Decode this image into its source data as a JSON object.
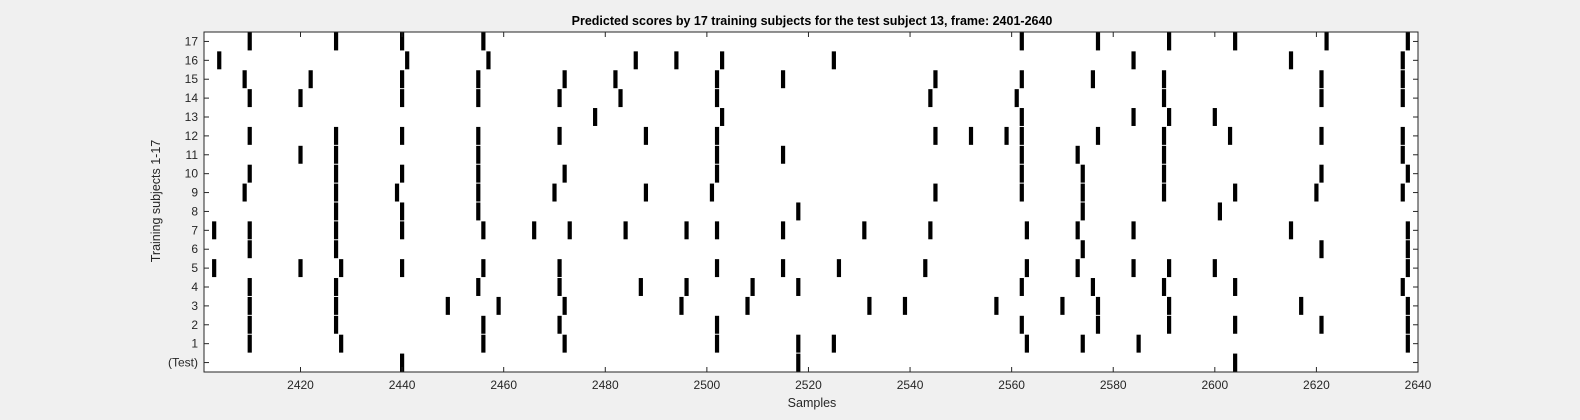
{
  "chart_data": {
    "type": "scatter",
    "marker": "vertical-bar",
    "title": "Predicted scores by 17 training subjects for the test subject 13, frame: 2401-2640",
    "xlabel": "Samples",
    "ylabel": "Training subjects 1-17",
    "xlim": [
      2401,
      2640
    ],
    "xticks": [
      2420,
      2440,
      2460,
      2480,
      2500,
      2520,
      2540,
      2560,
      2580,
      2600,
      2620,
      2640
    ],
    "yticklabels": [
      "(Test)",
      "1",
      "2",
      "3",
      "4",
      "5",
      "6",
      "7",
      "8",
      "9",
      "10",
      "11",
      "12",
      "13",
      "14",
      "15",
      "16",
      "17"
    ],
    "grid": false,
    "colors": {
      "mark": "#000000",
      "axes_bg": "#ffffff",
      "figure_bg": "#f0f0f0",
      "text": "#262626"
    },
    "rows": [
      {
        "label": "(Test)",
        "x": [
          2440,
          2518,
          2604
        ]
      },
      {
        "label": "1",
        "x": [
          2410,
          2428,
          2456,
          2472,
          2502,
          2518,
          2525,
          2563,
          2574,
          2585,
          2638
        ]
      },
      {
        "label": "2",
        "x": [
          2410,
          2427,
          2456,
          2471,
          2502,
          2562,
          2577,
          2591,
          2604,
          2621,
          2638
        ]
      },
      {
        "label": "3",
        "x": [
          2410,
          2427,
          2449,
          2459,
          2472,
          2495,
          2508,
          2532,
          2539,
          2557,
          2570,
          2577,
          2591,
          2617,
          2638
        ]
      },
      {
        "label": "4",
        "x": [
          2410,
          2427,
          2455,
          2471,
          2487,
          2496,
          2509,
          2518,
          2562,
          2576,
          2590,
          2604,
          2637
        ]
      },
      {
        "label": "5",
        "x": [
          2403,
          2420,
          2428,
          2440,
          2456,
          2471,
          2502,
          2515,
          2526,
          2543,
          2563,
          2573,
          2584,
          2591,
          2600,
          2638
        ]
      },
      {
        "label": "6",
        "x": [
          2410,
          2427,
          2574,
          2621,
          2638
        ]
      },
      {
        "label": "7",
        "x": [
          2403,
          2410,
          2427,
          2440,
          2456,
          2466,
          2473,
          2484,
          2496,
          2502,
          2515,
          2531,
          2544,
          2563,
          2573,
          2584,
          2615,
          2638
        ]
      },
      {
        "label": "8",
        "x": [
          2427,
          2440,
          2455,
          2518,
          2574,
          2601
        ]
      },
      {
        "label": "9",
        "x": [
          2409,
          2427,
          2439,
          2455,
          2470,
          2488,
          2501,
          2545,
          2562,
          2574,
          2590,
          2604,
          2620,
          2637
        ]
      },
      {
        "label": "10",
        "x": [
          2410,
          2427,
          2440,
          2455,
          2472,
          2502,
          2562,
          2574,
          2590,
          2621,
          2638
        ]
      },
      {
        "label": "11",
        "x": [
          2420,
          2427,
          2455,
          2502,
          2515,
          2562,
          2573,
          2590,
          2637
        ]
      },
      {
        "label": "12",
        "x": [
          2410,
          2427,
          2440,
          2455,
          2471,
          2488,
          2502,
          2545,
          2552,
          2559,
          2562,
          2577,
          2590,
          2603,
          2621,
          2637
        ]
      },
      {
        "label": "13",
        "x": [
          2478,
          2503,
          2562,
          2584,
          2591,
          2600
        ]
      },
      {
        "label": "14",
        "x": [
          2410,
          2420,
          2440,
          2455,
          2471,
          2483,
          2502,
          2544,
          2561,
          2590,
          2621,
          2637
        ]
      },
      {
        "label": "15",
        "x": [
          2409,
          2422,
          2440,
          2455,
          2472,
          2482,
          2502,
          2515,
          2545,
          2562,
          2576,
          2590,
          2621,
          2637
        ]
      },
      {
        "label": "16",
        "x": [
          2404,
          2441,
          2457,
          2486,
          2494,
          2503,
          2525,
          2584,
          2615,
          2637
        ]
      },
      {
        "label": "17",
        "x": [
          2410,
          2427,
          2440,
          2456,
          2562,
          2577,
          2591,
          2604,
          2622,
          2638
        ]
      }
    ]
  }
}
